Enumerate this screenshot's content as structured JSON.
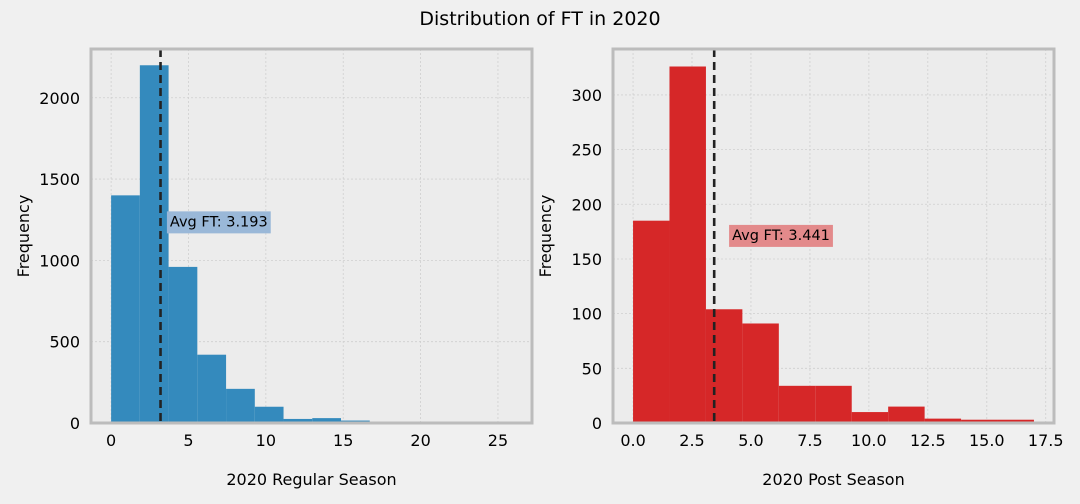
{
  "figure": {
    "title": "Distribution of FT in 2020"
  },
  "chart_data": [
    {
      "type": "bar",
      "subtype": "histogram",
      "xlabel": "2020 Regular Season",
      "ylabel": "Frequency",
      "xlim": [
        -1.3,
        27.2
      ],
      "ylim": [
        0,
        2300
      ],
      "xticks": [
        0,
        5,
        10,
        15,
        20,
        25
      ],
      "xtick_labels": [
        "0",
        "5",
        "10",
        "15",
        "20",
        "25"
      ],
      "yticks": [
        0,
        500,
        1000,
        1500,
        2000
      ],
      "ytick_labels": [
        "0",
        "500",
        "1000",
        "1500",
        "2000"
      ],
      "bin_edges": [
        0,
        1.857,
        3.714,
        5.571,
        7.429,
        9.286,
        11.143,
        13.0,
        14.857,
        16.714,
        18.571,
        20.429,
        22.286,
        24.143,
        26.0
      ],
      "values": [
        1400,
        2200,
        960,
        420,
        210,
        100,
        25,
        30,
        15,
        3,
        2,
        1,
        1,
        1
      ],
      "color": "#348abd",
      "mean_line": {
        "x": 3.193,
        "style": "dashed",
        "color": "#222222"
      },
      "annotation": {
        "text": "Avg FT: 3.193",
        "x": 3.8,
        "y": 1240,
        "box_color": "#9ab8d8"
      },
      "grid": true
    },
    {
      "type": "bar",
      "subtype": "histogram",
      "xlabel": "2020 Post Season",
      "ylabel": "Frequency",
      "xlim": [
        -0.85,
        17.85
      ],
      "ylim": [
        0,
        342
      ],
      "xticks": [
        0,
        2.5,
        5,
        7.5,
        10,
        12.5,
        15,
        17.5
      ],
      "xtick_labels": [
        "0.0",
        "2.5",
        "5.0",
        "7.5",
        "10.0",
        "12.5",
        "15.0",
        "17.5"
      ],
      "yticks": [
        0,
        50,
        100,
        150,
        200,
        250,
        300
      ],
      "ytick_labels": [
        "0",
        "50",
        "100",
        "150",
        "200",
        "250",
        "300"
      ],
      "bin_edges": [
        0,
        1.545,
        3.091,
        4.636,
        6.182,
        7.727,
        9.273,
        10.818,
        12.364,
        13.909,
        15.455,
        17.0
      ],
      "values": [
        185,
        326,
        104,
        91,
        34,
        34,
        10,
        15,
        4,
        3,
        3
      ],
      "color": "#d62728",
      "mean_line": {
        "x": 3.441,
        "style": "dashed",
        "color": "#222222"
      },
      "annotation": {
        "text": "Avg FT: 3.441",
        "x": 4.2,
        "y": 172,
        "box_color": "#e38a8b"
      },
      "grid": true
    }
  ]
}
